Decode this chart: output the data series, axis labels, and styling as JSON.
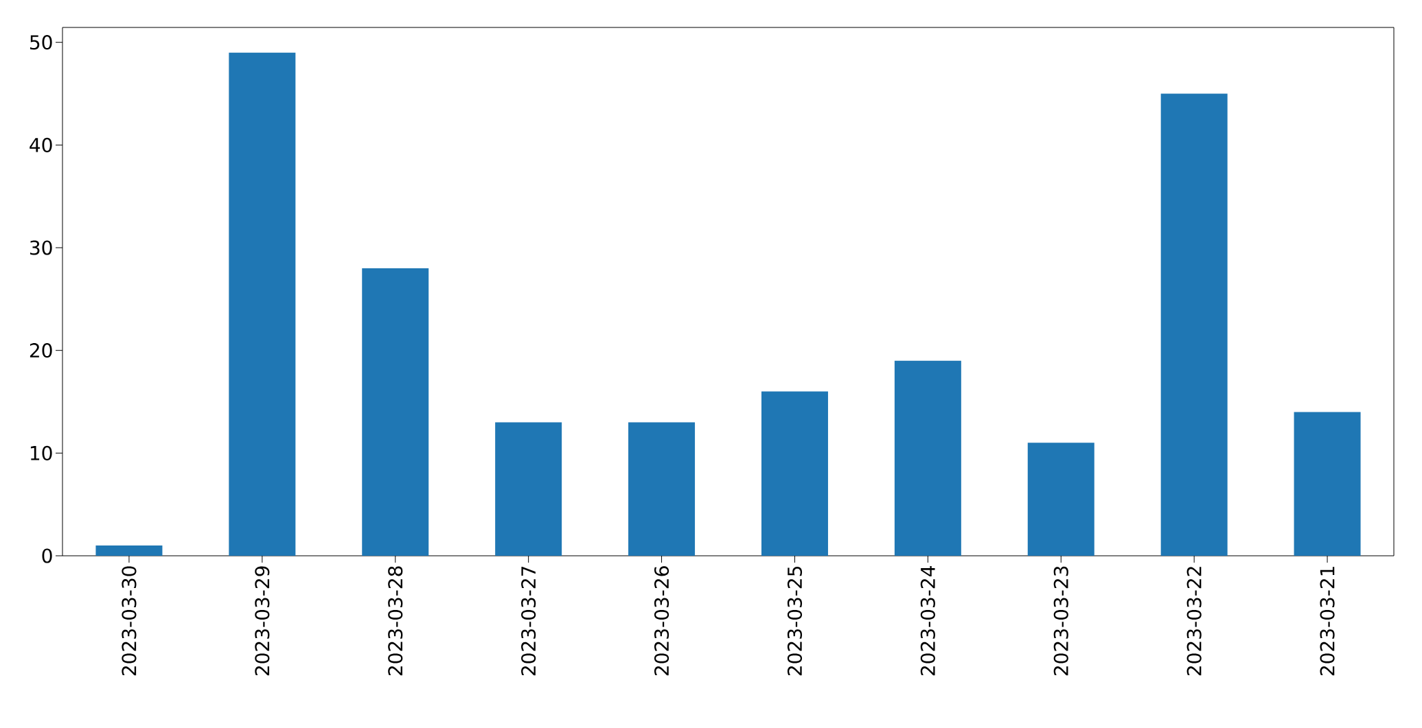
{
  "chart_data": {
    "type": "bar",
    "categories": [
      "2023-03-30",
      "2023-03-29",
      "2023-03-28",
      "2023-03-27",
      "2023-03-26",
      "2023-03-25",
      "2023-03-24",
      "2023-03-23",
      "2023-03-22",
      "2023-03-21"
    ],
    "values": [
      1,
      49,
      28,
      13,
      13,
      16,
      19,
      11,
      45,
      14
    ],
    "color": "#1f77b4",
    "ylim": [
      0,
      51.45
    ],
    "yticks": [
      0,
      10,
      20,
      30,
      40,
      50
    ]
  }
}
